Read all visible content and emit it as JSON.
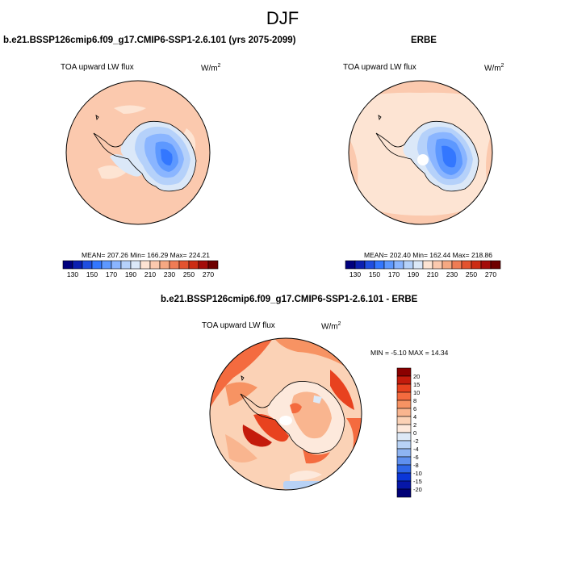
{
  "figure": {
    "season": "DJF"
  },
  "panels": {
    "model": {
      "title": "b.e21.BSSP126cmip6.f09_g17.CMIP6-SSP1-2.6.101 (yrs 2075-2099)",
      "subtitle": "TOA upward LW flux",
      "units_base": "W/m",
      "units_exp": "2",
      "stats": "MEAN= 207.26  Min= 166.29  Max= 224.21"
    },
    "obs": {
      "title": "ERBE",
      "subtitle": "TOA upward LW flux",
      "units_base": "W/m",
      "units_exp": "2",
      "stats": "MEAN= 202.40  Min= 162.44  Max= 218.86"
    },
    "diff": {
      "title": "b.e21.BSSP126cmip6.f09_g17.CMIP6-SSP1-2.6.101 - ERBE",
      "subtitle": "TOA upward LW flux",
      "units_base": "W/m",
      "units_exp": "2",
      "stats": "MIN =  -5.10 MAX =  14.34"
    }
  },
  "chart_data": [
    {
      "type": "heatmap",
      "name": "model",
      "projection": "south-polar stereographic",
      "variable": "TOA upward LW flux",
      "units": "W/m2",
      "mean": 207.26,
      "min": 166.29,
      "max": 224.21,
      "colorbar": {
        "orientation": "horizontal",
        "tick_labels": [
          "130",
          "150",
          "170",
          "190",
          "210",
          "230",
          "250",
          "270"
        ],
        "levels": [
          130,
          140,
          150,
          160,
          170,
          180,
          190,
          200,
          210,
          220,
          230,
          240,
          250,
          260,
          270
        ],
        "colors": [
          "#00007d",
          "#0b1fb0",
          "#1f4ee0",
          "#3377ff",
          "#5d98ff",
          "#8ab5ff",
          "#b5d1fa",
          "#dbe8f8",
          "#fde4d3",
          "#fbc9ae",
          "#f6a882",
          "#ef7c55",
          "#e3532f",
          "#cc2c14",
          "#a40d0a",
          "#6e0000"
        ]
      }
    },
    {
      "type": "heatmap",
      "name": "obs",
      "projection": "south-polar stereographic",
      "variable": "TOA upward LW flux",
      "units": "W/m2",
      "mean": 202.4,
      "min": 162.44,
      "max": 218.86,
      "colorbar": {
        "orientation": "horizontal",
        "tick_labels": [
          "130",
          "150",
          "170",
          "190",
          "210",
          "230",
          "250",
          "270"
        ],
        "levels": [
          130,
          140,
          150,
          160,
          170,
          180,
          190,
          200,
          210,
          220,
          230,
          240,
          250,
          260,
          270
        ],
        "colors": [
          "#00007d",
          "#0b1fb0",
          "#1f4ee0",
          "#3377ff",
          "#5d98ff",
          "#8ab5ff",
          "#b5d1fa",
          "#dbe8f8",
          "#fde4d3",
          "#fbc9ae",
          "#f6a882",
          "#ef7c55",
          "#e3532f",
          "#cc2c14",
          "#a40d0a",
          "#6e0000"
        ]
      }
    },
    {
      "type": "heatmap",
      "name": "difference",
      "projection": "south-polar stereographic",
      "variable": "TOA upward LW flux",
      "units": "W/m2",
      "min": -5.1,
      "max": 14.34,
      "colorbar": {
        "orientation": "vertical",
        "tick_labels": [
          "20",
          "15",
          "10",
          "8",
          "6",
          "4",
          "2",
          "0",
          "-2",
          "-4",
          "-6",
          "-8",
          "-10",
          "-15",
          "-20"
        ],
        "colors": [
          "#8b0000",
          "#c41b0c",
          "#e8421f",
          "#f46b3f",
          "#f79363",
          "#f9b58f",
          "#fbd2b6",
          "#fde9dc",
          "#dde9f7",
          "#b8d2f5",
          "#8eb4f2",
          "#5f90ef",
          "#2f66e8",
          "#0b36d8",
          "#0616a8",
          "#000077"
        ]
      }
    }
  ]
}
